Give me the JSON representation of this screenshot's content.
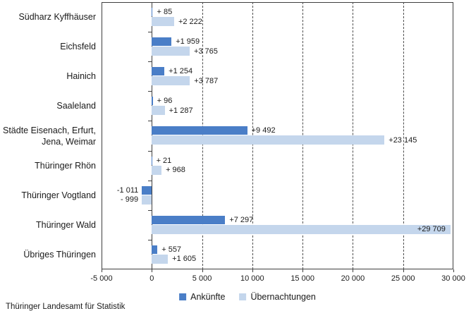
{
  "footer": {
    "source": "Thüringer Landesamt für Statistik"
  },
  "chart_data": {
    "type": "bar",
    "orientation": "horizontal",
    "title": "",
    "xlabel": "",
    "ylabel": "",
    "grid": "dashed-vertical",
    "legend_position": "bottom",
    "xlim": [
      -5000,
      30000
    ],
    "gridlines": [
      5000,
      10000,
      15000,
      20000,
      25000
    ],
    "x_ticks": [
      {
        "value": -5000,
        "label": "-5 000"
      },
      {
        "value": 0,
        "label": "0"
      },
      {
        "value": 5000,
        "label": "5 000"
      },
      {
        "value": 10000,
        "label": "10 000"
      },
      {
        "value": 15000,
        "label": "15 000"
      },
      {
        "value": 20000,
        "label": "20 000"
      },
      {
        "value": 25000,
        "label": "25 000"
      },
      {
        "value": 30000,
        "label": "30 000"
      }
    ],
    "categories": [
      "Südharz Kyffhäuser",
      "Eichsfeld",
      "Hainich",
      "Saaleland",
      "Städte Eisenach, Erfurt,\nJena, Weimar",
      "Thüringer Rhön",
      "Thüringer Vogtland",
      "Thüringer Wald",
      "Übriges Thüringen"
    ],
    "series": [
      {
        "name": "Ankünfte",
        "key": "ankuenfte",
        "color": "#4A7EC7",
        "values": [
          85,
          1959,
          1254,
          96,
          9492,
          21,
          -1011,
          7297,
          557
        ],
        "labels": [
          "+ 85",
          "+1 959",
          "+1 254",
          "+ 96",
          "+9 492",
          "+ 21",
          "-1 011",
          "+7 297",
          "+ 557"
        ]
      },
      {
        "name": "Übernachtungen",
        "key": "uebernachtungen",
        "color": "#C4D6EC",
        "values": [
          2222,
          3765,
          3787,
          1287,
          23145,
          968,
          -999,
          29709,
          1605
        ],
        "labels": [
          "+2 222",
          "+3 765",
          "+3 787",
          "+1 287",
          "+23 145",
          "+ 968",
          "- 999",
          "+29 709",
          "+1 605"
        ]
      }
    ]
  }
}
